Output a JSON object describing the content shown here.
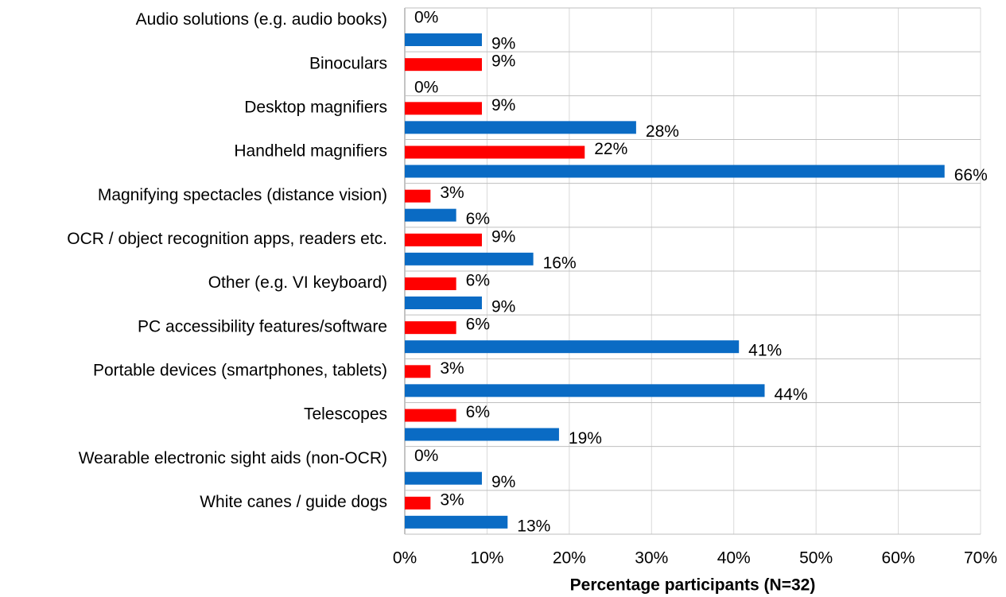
{
  "chart_data": {
    "type": "hbar",
    "categories": [
      "Audio solutions (e.g. audio books)",
      "Binoculars",
      "Desktop magnifiers",
      "Handheld magnifiers",
      "Magnifying spectacles (distance vision)",
      "OCR / object recognition apps, readers etc.",
      "Other (e.g. VI keyboard)",
      "PC accessibility features/software",
      "Portable devices (smartphones, tablets)",
      "Telescopes",
      "Wearable electronic sight aids (non-OCR)",
      "White canes / guide dogs"
    ],
    "series": [
      {
        "color": "#ff0000",
        "values": [
          0,
          9.375,
          9.375,
          21.875,
          3.125,
          9.375,
          6.25,
          6.25,
          3.125,
          6.25,
          0,
          3.125
        ],
        "value_labels": [
          "0%",
          "9%",
          "9%",
          "22%",
          "3%",
          "9%",
          "6%",
          "6%",
          "3%",
          "6%",
          "0%",
          "3%"
        ]
      },
      {
        "color": "#0a6bc4",
        "values": [
          9.375,
          0,
          28.125,
          65.625,
          6.25,
          15.625,
          9.375,
          40.625,
          43.75,
          18.75,
          9.375,
          12.5
        ],
        "value_labels": [
          "9%",
          "0%",
          "28%",
          "66%",
          "6%",
          "16%",
          "9%",
          "41%",
          "44%",
          "19%",
          "9%",
          "13%"
        ]
      }
    ],
    "xlabel": "Percentage participants (N=32)",
    "xlim": [
      0,
      70
    ],
    "xticks": [
      {
        "value": 0,
        "label": "0%"
      },
      {
        "value": 10,
        "label": "10%"
      },
      {
        "value": 20,
        "label": "20%"
      },
      {
        "value": 30,
        "label": "30%"
      },
      {
        "value": 40,
        "label": "40%"
      },
      {
        "value": 50,
        "label": "50%"
      },
      {
        "value": 60,
        "label": "60%"
      },
      {
        "value": 70,
        "label": "70%"
      }
    ],
    "grid": true
  }
}
